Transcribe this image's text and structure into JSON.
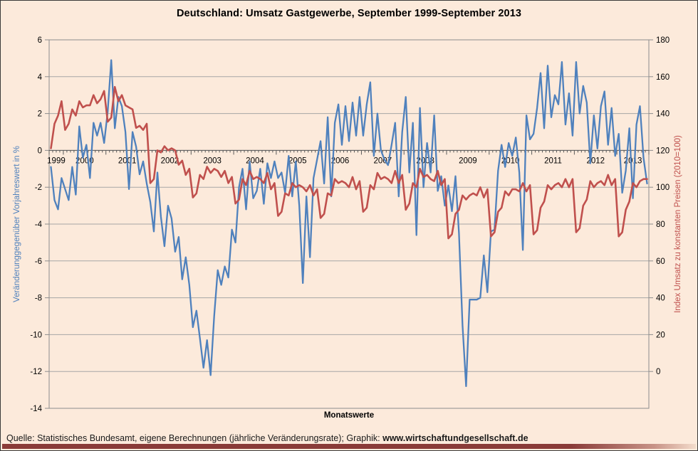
{
  "title": "Deutschland: Umsatz Gastgewerbe, September 1999-September 2013",
  "x_axis_title": "Monatswerte",
  "source": {
    "prefix": "Quelle: Statistisches Bundesamt, eigene Berechnungen (jährliche Veränderungsrate); Graphik: ",
    "site": "www.wirtschaftundgesellschaft.de"
  },
  "colors": {
    "background": "#FCEADB",
    "gridline": "#A6A6A6",
    "plot_border": "#8C8C8C",
    "category_axis": "#595959",
    "blue_series": "#4F81BD",
    "red_series": "#C0504D",
    "footer_bar": "#8A3B38",
    "text": "#000000"
  },
  "chart_data": {
    "type": "line",
    "title": "Deutschland: Umsatz Gastgewerbe, September 1999-September 2013",
    "xlabel": "Monatswerte",
    "x_start": "1999-09",
    "x_end": "2013-09",
    "n_months": 169,
    "grid": "horizontal-on",
    "legend": "none",
    "year_labels": [
      "1999",
      "2000",
      "2001",
      "2002",
      "2003",
      "2004",
      "2005",
      "2006",
      "2007",
      "2008",
      "2009",
      "2010",
      "2011",
      "2012",
      "2013"
    ],
    "left_axis": {
      "label": "Veränderunggegenüber Vorjahreswert in %",
      "min": -14,
      "max": 6,
      "step": 2,
      "ticks": [
        6,
        4,
        2,
        0,
        -2,
        -4,
        -6,
        -8,
        -10,
        -12,
        -14
      ],
      "color": "#4F81BD"
    },
    "right_axis": {
      "label": "Index Umsatz zu konstanten Preisen (2010=100)",
      "min": 0,
      "max": 180,
      "step": 20,
      "ticks": [
        180,
        160,
        140,
        120,
        100,
        80,
        60,
        40,
        20,
        0
      ],
      "color": "#C0504D"
    },
    "series": [
      {
        "name": "Veränderung gegenüber Vorjahreswert in %",
        "axis": "left",
        "color": "#4F81BD",
        "width": 2.3,
        "values": [
          -0.9,
          -2.7,
          -3.2,
          -1.5,
          -2.1,
          -2.7,
          -0.9,
          -2.4,
          1.3,
          -0.4,
          0.3,
          -1.5,
          1.5,
          0.8,
          1.5,
          0.4,
          2.1,
          4.9,
          1.2,
          2.9,
          2.4,
          1.0,
          -2.1,
          1.0,
          0.2,
          -1.3,
          -0.6,
          -1.8,
          -2.8,
          -4.4,
          -1.2,
          -3.6,
          -5.2,
          -3.0,
          -3.7,
          -5.5,
          -4.7,
          -7.0,
          -5.8,
          -7.3,
          -9.6,
          -8.7,
          -10.2,
          -11.8,
          -10.3,
          -12.2,
          -9.0,
          -6.5,
          -7.3,
          -6.3,
          -6.9,
          -4.3,
          -5.0,
          -2.0,
          -1.0,
          -3.2,
          -0.6,
          -2.6,
          -2.2,
          -1.0,
          -2.9,
          -0.7,
          -1.5,
          -0.6,
          -1.5,
          -1.2,
          -2.3,
          -0.3,
          -2.5,
          -0.6,
          -3.0,
          -7.2,
          -2.5,
          -5.8,
          -1.5,
          -0.5,
          0.5,
          -1.8,
          1.8,
          -2.5,
          1.5,
          2.5,
          0.3,
          2.4,
          0.5,
          2.6,
          0.8,
          2.9,
          0.8,
          2.5,
          3.7,
          -0.3,
          2.0,
          0.0,
          -0.5,
          -0.8,
          0.3,
          1.5,
          -2.5,
          1.0,
          2.9,
          -1.2,
          1.5,
          -4.6,
          2.3,
          -2.0,
          0.4,
          -1.2,
          1.9,
          -2.2,
          -1.4,
          -3.0,
          -1.9,
          -3.3,
          -1.4,
          -4.5,
          -9.5,
          -12.8,
          -8.1,
          -8.1,
          -8.1,
          -8.0,
          -5.7,
          -7.7,
          -4.4,
          -4.3,
          -1.1,
          0.3,
          -0.9,
          0.4,
          -0.3,
          0.7,
          -1.2,
          -5.4,
          1.9,
          0.6,
          0.9,
          2.3,
          4.2,
          1.2,
          4.6,
          1.8,
          3.0,
          2.5,
          4.8,
          1.4,
          3.1,
          0.8,
          4.8,
          2.0,
          3.5,
          2.6,
          -0.7,
          1.9,
          0.1,
          2.4,
          3.2,
          0.3,
          2.3,
          -0.3,
          0.9,
          -2.3,
          -1.1,
          1.2,
          -2.6,
          1.4,
          2.4,
          -0.4,
          -1.8
        ]
      },
      {
        "name": "Index Umsatz zu konstanten Preisen (2010=100)",
        "axis": "right",
        "color": "#C0504D",
        "width": 2.6,
        "values": [
          127,
          139,
          143,
          150,
          136,
          139,
          146,
          143,
          150,
          147,
          148,
          148,
          153,
          149,
          151,
          155,
          140,
          142,
          157,
          150,
          153,
          148,
          147,
          146,
          137,
          138,
          136,
          139,
          110,
          112,
          126,
          125,
          128,
          126,
          127,
          126,
          119,
          121,
          114,
          117,
          103,
          105,
          114,
          112,
          118,
          115,
          117,
          116,
          113,
          116,
          110,
          113,
          100,
          102,
          112,
          109,
          116,
          112,
          113,
          112,
          110,
          115,
          107,
          110,
          94,
          96,
          105,
          104,
          110,
          108,
          109,
          108,
          106,
          109,
          104,
          107,
          93,
          95,
          105,
          104,
          112,
          110,
          111,
          110,
          108,
          113,
          107,
          111,
          96,
          98,
          109,
          107,
          115,
          112,
          113,
          112,
          110,
          116,
          110,
          114,
          97,
          100,
          110,
          108,
          117,
          113,
          114,
          112,
          111,
          116,
          109,
          112,
          83,
          85,
          95,
          97,
          104,
          102,
          104,
          105,
          104,
          108,
          103,
          107,
          84,
          86,
          96,
          98,
          106,
          104,
          107,
          107,
          106,
          110,
          106,
          109,
          85,
          87,
          98,
          101,
          109,
          107,
          109,
          110,
          108,
          112,
          108,
          112,
          86,
          88,
          99,
          102,
          111,
          108,
          110,
          111,
          109,
          114,
          109,
          112,
          84,
          86,
          97,
          101,
          110,
          108,
          111,
          112,
          112
        ]
      }
    ]
  }
}
